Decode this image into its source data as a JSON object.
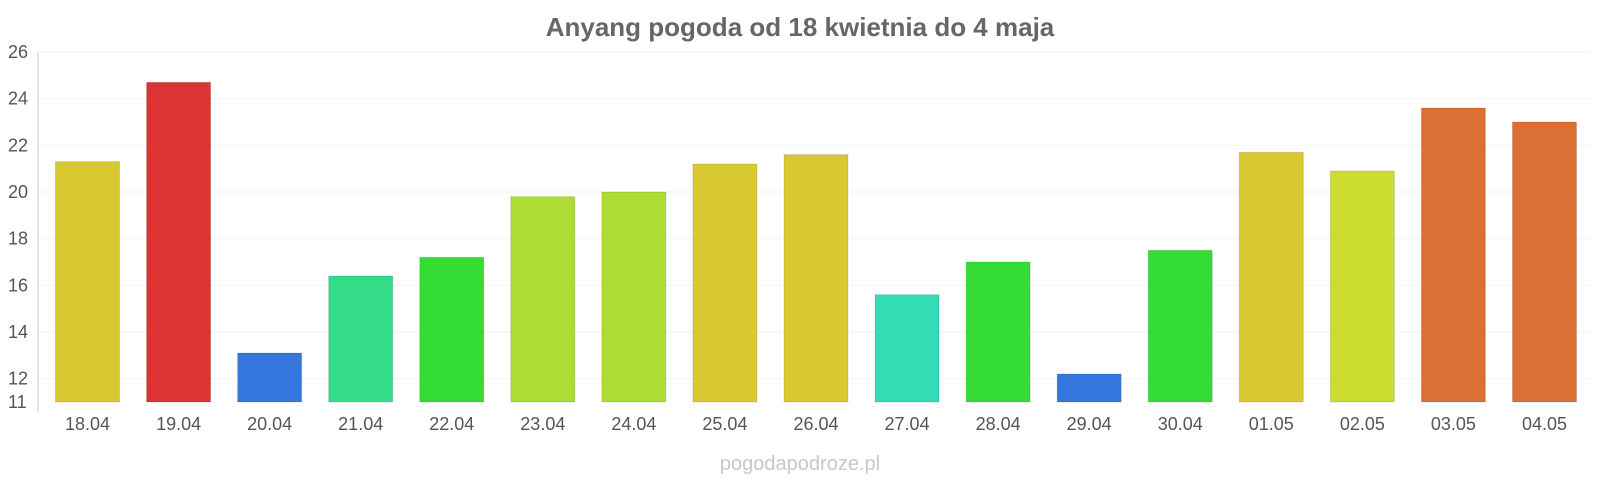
{
  "chart_data": {
    "type": "bar",
    "title": "Anyang pogoda od 18 kwietnia do 4 maja",
    "xlabel": "",
    "ylabel": "",
    "categories": [
      "18.04",
      "19.04",
      "20.04",
      "21.04",
      "22.04",
      "23.04",
      "24.04",
      "25.04",
      "26.04",
      "27.04",
      "28.04",
      "29.04",
      "30.04",
      "01.05",
      "02.05",
      "03.05",
      "04.05"
    ],
    "values": [
      21.3,
      24.7,
      13.1,
      16.4,
      17.2,
      19.8,
      20.0,
      21.2,
      21.6,
      15.6,
      17.0,
      12.2,
      17.5,
      21.7,
      20.9,
      23.6,
      23.0
    ],
    "colors": [
      "#d9c931",
      "#dc3434",
      "#3476dc",
      "#34dc8a",
      "#34dc34",
      "#addc34",
      "#addc34",
      "#d9c931",
      "#d9c931",
      "#34dcb6",
      "#34dc34",
      "#3476dc",
      "#34dc34",
      "#d9c931",
      "#ccdc31",
      "#dc6f34",
      "#dc6f34"
    ],
    "ylim": [
      11,
      26
    ],
    "yticks": [
      11,
      12,
      14,
      16,
      18,
      20,
      22,
      24,
      26
    ],
    "grid": true,
    "watermark": "pogodapodroze.pl"
  }
}
